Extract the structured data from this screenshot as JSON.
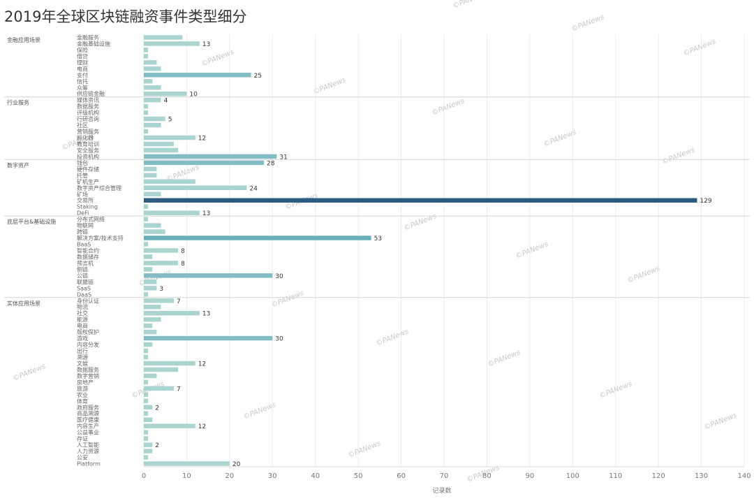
{
  "title": "2019年全球区块链融资事件类型细分",
  "watermark": "PANews",
  "chart_data": {
    "type": "bar",
    "orientation": "horizontal",
    "xlabel": "记录数",
    "xlim": [
      0,
      140
    ],
    "xticks": [
      0,
      10,
      20,
      30,
      40,
      50,
      60,
      70,
      80,
      90,
      100,
      110,
      120,
      130,
      140
    ],
    "grid": true,
    "colors": {
      "light": "#a9d4d0",
      "mid": "#6aaeb8",
      "dark": "#2c5d80"
    },
    "groups": [
      {
        "name": "金融应用场景",
        "categories": [
          {
            "label": "金融服务",
            "value": 9
          },
          {
            "label": "金融基础设施",
            "value": 13,
            "data_label": "13"
          },
          {
            "label": "保险",
            "value": 1
          },
          {
            "label": "借贷",
            "value": 1
          },
          {
            "label": "理财",
            "value": 3
          },
          {
            "label": "电商",
            "value": 4
          },
          {
            "label": "支付",
            "value": 25,
            "data_label": "25"
          },
          {
            "label": "信托",
            "value": 2
          },
          {
            "label": "众筹",
            "value": 4
          },
          {
            "label": "供应链金融",
            "value": 10,
            "data_label": "10"
          }
        ]
      },
      {
        "name": "行业服务",
        "categories": [
          {
            "label": "媒体资讯",
            "value": 4,
            "data_label": "4"
          },
          {
            "label": "数据服务",
            "value": 1
          },
          {
            "label": "评级机构",
            "value": 1
          },
          {
            "label": "行研咨询",
            "value": 5,
            "data_label": "5"
          },
          {
            "label": "社区",
            "value": 4
          },
          {
            "label": "营销服务",
            "value": 1
          },
          {
            "label": "孵化器",
            "value": 12,
            "data_label": "12"
          },
          {
            "label": "教育培训",
            "value": 7
          },
          {
            "label": "安全服务",
            "value": 8
          },
          {
            "label": "投资机构",
            "value": 31,
            "data_label": "31"
          }
        ]
      },
      {
        "name": "数字资产",
        "categories": [
          {
            "label": "钱包",
            "value": 28,
            "data_label": "28"
          },
          {
            "label": "硬件存储",
            "value": 3
          },
          {
            "label": "托管",
            "value": 3
          },
          {
            "label": "矿机生产",
            "value": 12
          },
          {
            "label": "数字资产综合管理",
            "value": 24,
            "data_label": "24"
          },
          {
            "label": "矿场",
            "value": 4
          },
          {
            "label": "交易所",
            "value": 129,
            "data_label": "129"
          },
          {
            "label": "Staking",
            "value": 1
          },
          {
            "label": "DeFi",
            "value": 13,
            "data_label": "13"
          }
        ]
      },
      {
        "name": "底层平台&基础设施",
        "categories": [
          {
            "label": "分布式网络",
            "value": 1
          },
          {
            "label": "物联网",
            "value": 4
          },
          {
            "label": "跨链",
            "value": 5
          },
          {
            "label": "解决方案/技术支持",
            "value": 53,
            "data_label": "53"
          },
          {
            "label": "BaaS",
            "value": 1
          },
          {
            "label": "智能合约",
            "value": 8,
            "data_label": "8"
          },
          {
            "label": "数据储存",
            "value": 2
          },
          {
            "label": "预言机",
            "value": 8,
            "data_label": "8"
          },
          {
            "label": "侧链",
            "value": 2
          },
          {
            "label": "公链",
            "value": 30,
            "data_label": "30"
          },
          {
            "label": "联盟链",
            "value": 3
          },
          {
            "label": "SaaS",
            "value": 3,
            "data_label": "3"
          },
          {
            "label": "DaaS",
            "value": 1
          }
        ]
      },
      {
        "name": "实体应用场景",
        "categories": [
          {
            "label": "身份认证",
            "value": 7,
            "data_label": "7"
          },
          {
            "label": "物流",
            "value": 4
          },
          {
            "label": "社交",
            "value": 13,
            "data_label": "13"
          },
          {
            "label": "能源",
            "value": 4
          },
          {
            "label": "电商",
            "value": 2
          },
          {
            "label": "版权保护",
            "value": 3
          },
          {
            "label": "游戏",
            "value": 30,
            "data_label": "30"
          },
          {
            "label": "内容分发",
            "value": 2
          },
          {
            "label": "出行",
            "value": 1
          },
          {
            "label": "溯源",
            "value": 1
          },
          {
            "label": "文娱",
            "value": 12,
            "data_label": "12"
          },
          {
            "label": "数据服务",
            "value": 8
          },
          {
            "label": "数字营销",
            "value": 3
          },
          {
            "label": "房地产",
            "value": 1
          },
          {
            "label": "旅游",
            "value": 7,
            "data_label": "7"
          },
          {
            "label": "农业",
            "value": 1
          },
          {
            "label": "体育",
            "value": 1
          },
          {
            "label": "政府服务",
            "value": 2,
            "data_label": "2"
          },
          {
            "label": "商品溯源",
            "value": 1
          },
          {
            "label": "医疗健康",
            "value": 2
          },
          {
            "label": "内容生产",
            "value": 12,
            "data_label": "12"
          },
          {
            "label": "公益事业",
            "value": 1
          },
          {
            "label": "存证",
            "value": 1
          },
          {
            "label": "人工智能",
            "value": 2,
            "data_label": "2"
          },
          {
            "label": "人力资源",
            "value": 2
          },
          {
            "label": "公安",
            "value": 1
          },
          {
            "label": "Platform",
            "value": 20,
            "data_label": "20"
          }
        ]
      }
    ]
  }
}
